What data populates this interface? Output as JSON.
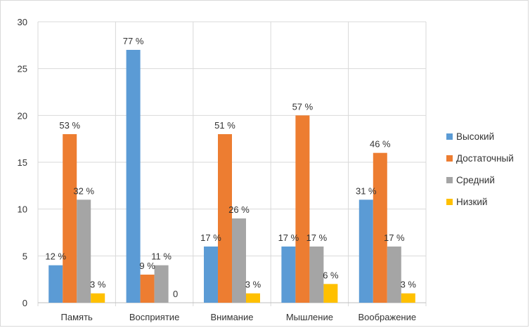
{
  "chart_data": {
    "type": "bar",
    "title": "",
    "xlabel": "",
    "ylabel": "",
    "ylim": [
      0,
      30
    ],
    "yticks": [
      0,
      5,
      10,
      15,
      20,
      25,
      30
    ],
    "grid": true,
    "legend_position": "right",
    "categories": [
      "Память",
      "Восприятие",
      "Внимание",
      "Мышление",
      "Воображение"
    ],
    "series": [
      {
        "name": "Высокий",
        "color": "#5B9BD5",
        "values": [
          4,
          27,
          6,
          6,
          11
        ],
        "labels": [
          "12 %",
          "77 %",
          "17 %",
          "17 %",
          "31 %"
        ]
      },
      {
        "name": "Достаточный",
        "color": "#ED7D31",
        "values": [
          18,
          3,
          18,
          20,
          16
        ],
        "labels": [
          "53 %",
          "9 %",
          "51 %",
          "57 %",
          "46 %"
        ]
      },
      {
        "name": "Средний",
        "color": "#A5A5A5",
        "values": [
          11,
          4,
          9,
          6,
          6
        ],
        "labels": [
          "32 %",
          "11 %",
          "26 %",
          "17 %",
          "17 %"
        ]
      },
      {
        "name": "Низкий",
        "color": "#FFC000",
        "values": [
          1,
          0,
          1,
          2,
          1
        ],
        "labels": [
          "3 %",
          "0",
          "3 %",
          "6 %",
          "3 %"
        ]
      }
    ]
  }
}
